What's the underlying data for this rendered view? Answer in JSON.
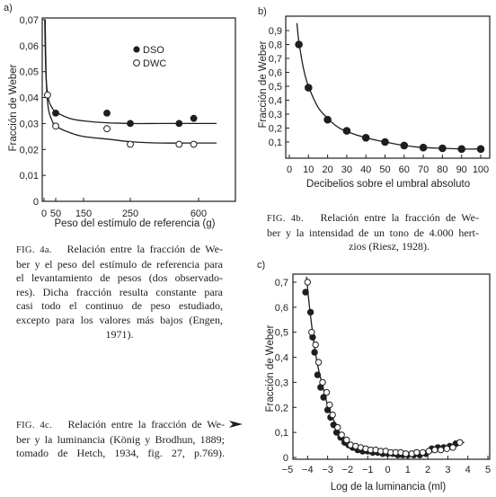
{
  "colors": {
    "ink": "#1e1e1e",
    "paper": "#ffffff"
  },
  "icons": {
    "caption_c_marker": "arrow-right-icon"
  },
  "chart_data": [
    {
      "panel_label": "a)",
      "type": "scatter",
      "xlabel": "Peso del estímulo de referencia (g)",
      "ylabel": "Fracción de Weber",
      "xticks": [
        0,
        50,
        150,
        250,
        600
      ],
      "xtick_labels": [
        "0",
        "50",
        "150",
        "250",
        "600"
      ],
      "yticks": [
        0,
        0.01,
        0.02,
        0.03,
        0.04,
        0.05,
        0.06,
        0.07
      ],
      "ytick_labels": [
        "0",
        "0,01",
        "0,02",
        "0,03",
        "0,04",
        "0,05",
        "0,06",
        "0,07"
      ],
      "ylim": [
        0,
        0.07
      ],
      "grid": false,
      "legend_position": "top-right",
      "series": [
        {
          "name": "DSO",
          "marker": "filled-circle",
          "x": [
            50,
            200,
            250,
            500,
            575
          ],
          "y": [
            0.034,
            0.034,
            0.03,
            0.03,
            0.032
          ]
        },
        {
          "name": "DWC",
          "marker": "open-circle",
          "x": [
            15,
            50,
            200,
            250,
            500,
            575
          ],
          "y": [
            0.041,
            0.029,
            0.028,
            0.022,
            0.022,
            0.022
          ]
        }
      ],
      "curves": [
        {
          "x": [
            3,
            6,
            10,
            20,
            35,
            50,
            100,
            150,
            200,
            250,
            400,
            600,
            690
          ],
          "y": [
            0.07,
            0.055,
            0.046,
            0.039,
            0.036,
            0.0345,
            0.032,
            0.031,
            0.0303,
            0.03,
            0.03,
            0.03,
            0.03
          ]
        },
        {
          "x": [
            5,
            8,
            12,
            20,
            35,
            50,
            100,
            150,
            200,
            250,
            400,
            600,
            690
          ],
          "y": [
            0.07,
            0.052,
            0.042,
            0.035,
            0.031,
            0.029,
            0.0265,
            0.025,
            0.024,
            0.023,
            0.0225,
            0.0225,
            0.0225
          ]
        }
      ]
    },
    {
      "panel_label": "b)",
      "type": "scatter",
      "xlabel": "Decibelios sobre el umbral absoluto",
      "ylabel": "Fracción de Weber",
      "xlim": [
        0,
        100
      ],
      "ylim": [
        0,
        0.9
      ],
      "xticks": [
        0,
        10,
        20,
        30,
        40,
        50,
        60,
        70,
        80,
        90,
        100
      ],
      "xtick_labels": [
        "0",
        "10",
        "20",
        "30",
        "40",
        "50",
        "60",
        "70",
        "80",
        "90",
        "100"
      ],
      "yticks": [
        0.1,
        0.2,
        0.3,
        0.4,
        0.5,
        0.6,
        0.7,
        0.8,
        0.9
      ],
      "ytick_labels": [
        "0,1",
        "0,2",
        "0,3",
        "0,4",
        "0,5",
        "0,6",
        "0,7",
        "0,8",
        "0,9"
      ],
      "grid": false,
      "series": [
        {
          "marker": "filled-circle",
          "x": [
            5,
            10,
            20,
            30,
            40,
            50,
            60,
            70,
            80,
            90,
            100
          ],
          "y": [
            0.8,
            0.49,
            0.26,
            0.18,
            0.13,
            0.1,
            0.075,
            0.06,
            0.055,
            0.05,
            0.05
          ]
        }
      ],
      "curves": [
        {
          "x": [
            4,
            5,
            7.5,
            10,
            15,
            20,
            25,
            30,
            40,
            50,
            60,
            70,
            80,
            90,
            100
          ],
          "y": [
            0.95,
            0.82,
            0.62,
            0.5,
            0.35,
            0.27,
            0.21,
            0.175,
            0.13,
            0.1,
            0.075,
            0.06,
            0.055,
            0.05,
            0.05
          ]
        }
      ]
    },
    {
      "panel_label": "c)",
      "type": "scatter",
      "xlabel": "Log de la luminancia (ml)",
      "ylabel": "Fracción de Weber",
      "xlim": [
        -5,
        5
      ],
      "ylim": [
        0,
        0.7
      ],
      "xticks": [
        -5,
        -4,
        -3,
        -2,
        -1,
        0,
        1,
        2,
        3,
        4,
        5
      ],
      "xtick_labels": [
        "−5",
        "−4",
        "−3",
        "−2",
        "−1",
        "0",
        "1",
        "2",
        "3",
        "4",
        "5"
      ],
      "yticks": [
        0,
        0.1,
        0.2,
        0.3,
        0.4,
        0.5,
        0.6,
        0.7
      ],
      "ytick_labels": [
        "0",
        "0,1",
        "0,2",
        "0,3",
        "0,4",
        "0,5",
        "0,6",
        "0,7"
      ],
      "grid": false,
      "series": [
        {
          "marker": "filled-circle",
          "x": [
            -4.1,
            -3.85,
            -3.75,
            -3.65,
            -3.5,
            -3.35,
            -3.2,
            -3.0,
            -2.85,
            -2.7,
            -2.55,
            -2.35,
            -2.15,
            -1.95,
            -1.75,
            -1.5,
            -1.25,
            -1.0,
            -0.75,
            -0.5,
            -0.25,
            0.0,
            0.25,
            0.5,
            0.75,
            1.0,
            1.3,
            1.6,
            1.9,
            2.2,
            2.5,
            2.8,
            3.1,
            3.4
          ],
          "y": [
            0.66,
            0.58,
            0.48,
            0.42,
            0.33,
            0.28,
            0.24,
            0.19,
            0.16,
            0.13,
            0.1,
            0.08,
            0.06,
            0.05,
            0.04,
            0.03,
            0.025,
            0.025,
            0.02,
            0.02,
            0.015,
            0.015,
            0.015,
            0.01,
            0.01,
            0.01,
            0.01,
            0.01,
            0.015,
            0.035,
            0.04,
            0.04,
            0.045,
            0.055
          ]
        },
        {
          "marker": "open-circle",
          "x": [
            -4.0,
            -3.8,
            -3.6,
            -3.45,
            -3.25,
            -3.05,
            -2.9,
            -2.75,
            -2.5,
            -2.3,
            -2.05,
            -1.85,
            -1.6,
            -1.35,
            -1.1,
            -0.85,
            -0.6,
            -0.35,
            -0.1,
            0.15,
            0.4,
            0.65,
            0.9,
            1.2,
            1.45,
            1.75,
            2.05,
            2.35,
            2.65,
            2.95,
            3.25,
            3.6
          ],
          "y": [
            0.7,
            0.5,
            0.45,
            0.38,
            0.3,
            0.26,
            0.21,
            0.17,
            0.12,
            0.09,
            0.07,
            0.05,
            0.045,
            0.04,
            0.035,
            0.03,
            0.03,
            0.025,
            0.025,
            0.02,
            0.02,
            0.02,
            0.015,
            0.015,
            0.02,
            0.02,
            0.025,
            0.03,
            0.03,
            0.035,
            0.04,
            0.06
          ]
        }
      ],
      "curves": [
        {
          "x": [
            -4.05,
            -3.9,
            -3.7,
            -3.5,
            -3.2,
            -3.0,
            -2.7,
            -2.4,
            -2.0,
            -1.5,
            -1.0,
            -0.5,
            0,
            0.5,
            1.0,
            1.5,
            2.0,
            2.5,
            3.0,
            3.5,
            3.8
          ],
          "y": [
            0.72,
            0.6,
            0.47,
            0.37,
            0.27,
            0.21,
            0.15,
            0.1,
            0.065,
            0.04,
            0.03,
            0.022,
            0.018,
            0.015,
            0.013,
            0.013,
            0.018,
            0.028,
            0.04,
            0.052,
            0.06
          ]
        }
      ]
    }
  ],
  "captions": {
    "a": {
      "fig_label": "FIG. 4a.",
      "first_line": "Relación entre la fracción de We-",
      "lines": [
        "ber y el peso del estímulo de referencia para",
        "el levantamiento de pesos (dos observado-",
        "res). Dicha fracción resulta constante para",
        "casi todo el continuo de peso estudiado,",
        "excepto para los valores más bajos (Engen,",
        "1971)."
      ]
    },
    "b": {
      "fig_label": "FIG. 4b.",
      "first_line": "Relación entre la fracción de We-",
      "lines": [
        "ber y la intensidad de un tono de 4.000 hert-",
        "zios (Riesz, 1928)."
      ]
    },
    "c": {
      "fig_label": "FIG. 4c.",
      "first_line": "Relación entre la fracción de We-",
      "lines": [
        "ber y la luminancia (König y Brodhun, 1889;",
        "tomado de Hetch, 1934, fig. 27, p.769)."
      ]
    }
  }
}
